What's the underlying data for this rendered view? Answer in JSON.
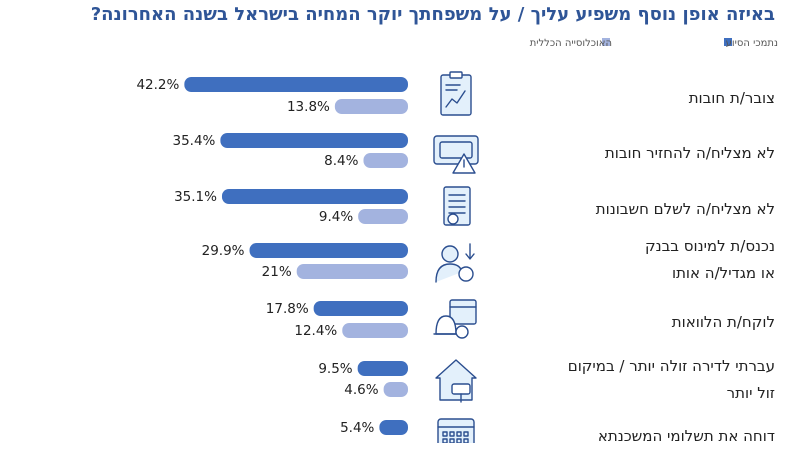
{
  "title": "באיזה אופן נוסף משפיע עליך / על משפחתך יוקר המחיה בישראל בשנה האחרונה?",
  "colors": {
    "primary": "#3f6fbf",
    "secondary": "#a3b3df",
    "icon_bg": "#e3f0fb",
    "icon_stroke": "#2b4e8f"
  },
  "chart_data": {
    "type": "bar",
    "orientation": "horizontal",
    "title": "באיזה אופן נוסף משפיע עליך / על משפחתך יוקר המחיה בישראל בשנה האחרונה?",
    "legend_position": "top-right",
    "categories": [
      "צובר/ת חובות",
      "לא מצליח/ה להחזיר חובות",
      "לא מצליח/ה לשלם חשבונות",
      "נכנס/ת למינוס בבנק או מגדיל/ה אותו",
      "לוקח/ת הלוואות",
      "עברתי לדירה זולה יותר / במיקום זול יותר",
      "דוחה את תשלומי המשכנתא"
    ],
    "category_lines": [
      [
        "צובר/ת חובות"
      ],
      [
        "לא מצליח/ה להחזיר חובות"
      ],
      [
        "לא מצליח/ה לשלם חשבונות"
      ],
      [
        "נכנס/ת למינוס בבנק",
        "או מגדיל/ה אותו"
      ],
      [
        "לוקח/ת הלוואות"
      ],
      [
        "עברתי לדירה זולה יותר / במיקום",
        "זול יותר"
      ],
      [
        "דוחה את תשלומי המשכנתא"
      ]
    ],
    "icons": [
      "chart-clipboard-icon",
      "bill-warning-icon",
      "invoice-icon",
      "person-money-icon",
      "calendar-bell-icon",
      "house-mailbox-icon",
      "calendar-icon"
    ],
    "series": [
      {
        "name": "נתמכי הסיוע",
        "values": [
          42.2,
          35.4,
          35.1,
          29.9,
          17.8,
          9.5,
          5.4
        ],
        "labels": [
          "42.2%",
          "35.4%",
          "35.1%",
          "29.9%",
          "17.8%",
          "9.5%",
          "5.4%"
        ]
      },
      {
        "name": "האוכלוסייה הכללית",
        "values": [
          13.8,
          8.4,
          9.4,
          21,
          12.4,
          4.6,
          null
        ],
        "labels": [
          "13.8%",
          "8.4%",
          "9.4%",
          "21%",
          "12.4%",
          "4.6%",
          ""
        ]
      }
    ]
  }
}
